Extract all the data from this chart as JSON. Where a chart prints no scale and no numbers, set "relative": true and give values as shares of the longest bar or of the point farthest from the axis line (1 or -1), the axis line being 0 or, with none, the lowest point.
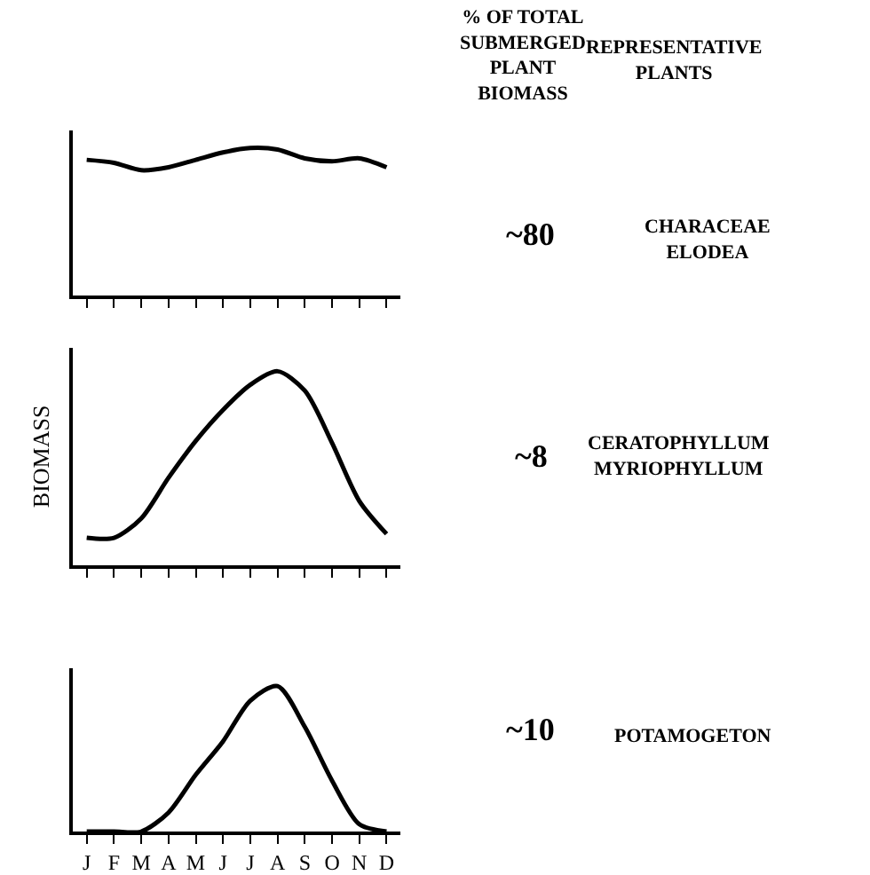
{
  "chart_data": [
    {
      "type": "line",
      "relative": true,
      "categories": [
        null,
        null,
        null,
        null,
        null,
        null,
        null,
        null,
        null,
        null,
        null,
        null
      ],
      "tick_labels": false,
      "marker": "none",
      "line_style": "solid",
      "series": [
        {
          "color": "#000000",
          "values": [
            0.92,
            0.9,
            0.85,
            0.87,
            0.92,
            0.97,
            1,
            0.99,
            0.93,
            0.91,
            0.93,
            0.87
          ]
        }
      ],
      "annotations": [
        "% OF TOTAL\nSUBMERGED\nPLANT\nBIOMASS",
        "REPRESENTATIVE\nPLANTS",
        "~80",
        "CHARACEAE\nELODEA"
      ]
    },
    {
      "type": "line",
      "relative": true,
      "categories": [
        null,
        null,
        null,
        null,
        null,
        null,
        null,
        null,
        null,
        null,
        null,
        null
      ],
      "tick_labels": false,
      "marker": "none",
      "line_style": "solid",
      "ylabel": "BIOMASS",
      "series": [
        {
          "color": "#000000",
          "values": [
            0.14,
            0.14,
            0.24,
            0.45,
            0.64,
            0.8,
            0.93,
            1,
            0.9,
            0.63,
            0.33,
            0.16
          ]
        }
      ],
      "annotations": [
        "~8",
        "CERATOPHYLLUM\nMYRIOPHYLLUM"
      ]
    },
    {
      "type": "line",
      "relative": true,
      "categories": [
        "J",
        "F",
        "M",
        "A",
        "M",
        "J",
        "J",
        "A",
        "S",
        "O",
        "N",
        "D"
      ],
      "tick_labels": "x",
      "marker": "none",
      "line_style": "solid",
      "series": [
        {
          "color": "#000000",
          "values": [
            0,
            0,
            0,
            0.13,
            0.39,
            0.62,
            0.9,
            1,
            0.72,
            0.35,
            0.05,
            0
          ]
        }
      ],
      "annotations": [
        "~10",
        "POTAMOGETON"
      ]
    }
  ]
}
